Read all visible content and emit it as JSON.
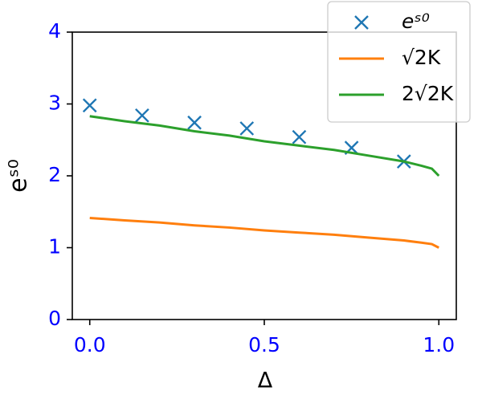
{
  "chart_data": {
    "type": "line",
    "x_label": "Δ",
    "y_label": "eˢ⁰",
    "xlim": [
      -0.05,
      1.05
    ],
    "ylim": [
      0,
      4
    ],
    "xticks": [
      {
        "value": 0,
        "label": "0.0"
      },
      {
        "value": 0.5,
        "label": "0.5"
      },
      {
        "value": 1,
        "label": "1.0"
      }
    ],
    "yticks": [
      0,
      1,
      2,
      3,
      4
    ],
    "tick_label_color": "#0000ff",
    "legend": "upper right",
    "series": [
      {
        "name": "eˢ⁰",
        "color": "#1f77b4",
        "marker": "x",
        "x": [
          0,
          0.15,
          0.3,
          0.45,
          0.6,
          0.75,
          0.9
        ],
        "values": [
          2.98,
          2.84,
          2.74,
          2.66,
          2.54,
          2.39,
          2.2
        ]
      },
      {
        "name": "√2K",
        "color": "#ff7f0e",
        "x": [
          0,
          0.1,
          0.2,
          0.3,
          0.4,
          0.5,
          0.6,
          0.7,
          0.8,
          0.9,
          0.95,
          0.98,
          1.0
        ],
        "values": [
          1.414,
          1.38,
          1.35,
          1.31,
          1.28,
          1.24,
          1.21,
          1.18,
          1.14,
          1.1,
          1.07,
          1.05,
          1.0
        ]
      },
      {
        "name": "2√2K",
        "color": "#2ca02c",
        "x": [
          0,
          0.1,
          0.2,
          0.3,
          0.4,
          0.5,
          0.6,
          0.7,
          0.8,
          0.9,
          0.95,
          0.98,
          1.0
        ],
        "values": [
          2.83,
          2.76,
          2.7,
          2.62,
          2.56,
          2.48,
          2.42,
          2.36,
          2.28,
          2.2,
          2.14,
          2.1,
          2.0
        ]
      }
    ]
  }
}
